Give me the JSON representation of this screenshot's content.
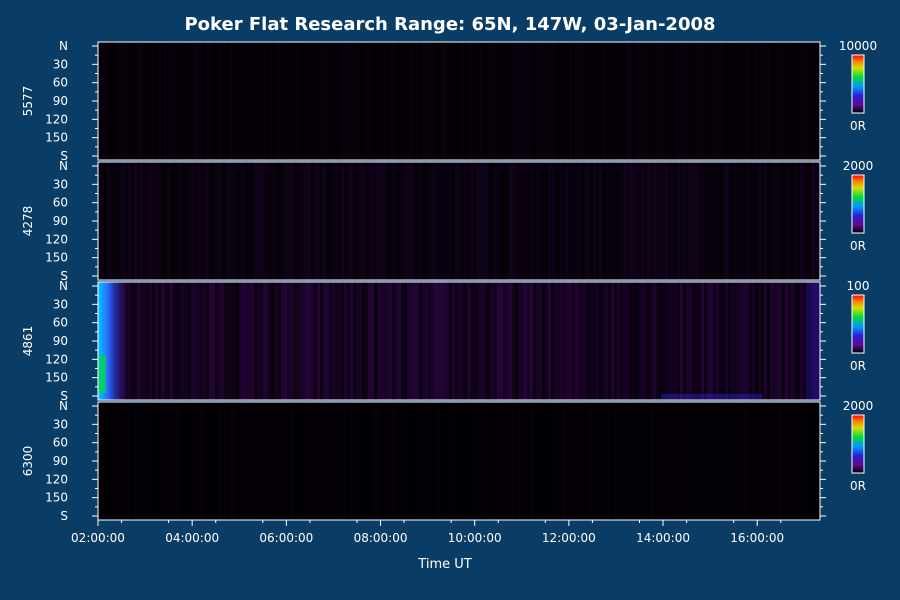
{
  "chart_data": {
    "type": "heatmap",
    "title": "Poker Flat Research Range: 65N, 147W, 03-Jan-2008",
    "xlabel": "Time UT",
    "x_ticks": [
      "02:00:00",
      "04:00:00",
      "06:00:00",
      "08:00:00",
      "10:00:00",
      "12:00:00",
      "14:00:00",
      "16:00:00"
    ],
    "x_range": [
      "02:00:00",
      "17:20:00"
    ],
    "y_ticks": [
      "N",
      "30",
      "60",
      "90",
      "120",
      "150",
      "S"
    ],
    "panels": [
      {
        "wavelength": "5577",
        "colorbar_max": "10000",
        "colorbar_min": "0R",
        "intensity_level": 0.05
      },
      {
        "wavelength": "4278",
        "colorbar_max": "2000",
        "colorbar_min": "0R",
        "intensity_level": 0.1
      },
      {
        "wavelength": "4861",
        "colorbar_max": "100",
        "colorbar_min": "0R",
        "intensity_level": 0.2,
        "bright_edge_start": "02:00:00 to 02:30:00"
      },
      {
        "wavelength": "6300",
        "colorbar_max": "2000",
        "colorbar_min": "0R",
        "intensity_level": 0.03
      }
    ],
    "colorscale": [
      "#000000",
      "#5a0a8c",
      "#2a1ed2",
      "#0096ff",
      "#00dc3c",
      "#dcdc00",
      "#ff7800",
      "#ff0000"
    ],
    "grid": false
  }
}
